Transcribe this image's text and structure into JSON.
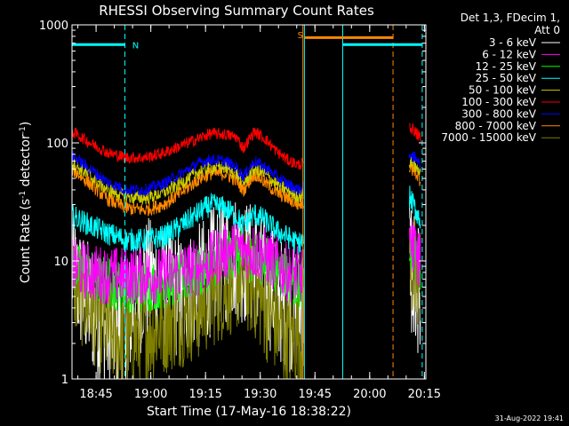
{
  "chart_data": {
    "type": "line",
    "title": "RHESSI Observing Summary Count Rates",
    "xlabel": "Start Time (17-May-16 18:38:22)",
    "ylabel_main": "Count Rate (s",
    "ylabel_sup1": "-1",
    "ylabel_mid": " detector",
    "ylabel_sup2": "-1",
    "ylabel_end": ")",
    "yscale": "log",
    "ylim": [
      1,
      1000
    ],
    "xlim_minutes": [
      0,
      97
    ],
    "x_ticks": [
      {
        "m": 6.6,
        "label": "18:45"
      },
      {
        "m": 21.6,
        "label": "19:00"
      },
      {
        "m": 36.6,
        "label": "19:15"
      },
      {
        "m": 51.6,
        "label": "19:30"
      },
      {
        "m": 66.6,
        "label": "19:45"
      },
      {
        "m": 81.6,
        "label": "20:00"
      },
      {
        "m": 96.6,
        "label": "20:15"
      }
    ],
    "y_ticks": [
      {
        "v": 1,
        "label": "1"
      },
      {
        "v": 10,
        "label": "10"
      },
      {
        "v": 100,
        "label": "100"
      },
      {
        "v": 1000,
        "label": "1000"
      }
    ],
    "legend_header": [
      "Det 1,3, FDecim 1,",
      "Att 0"
    ],
    "legend_position": "top-right-outside",
    "series": [
      {
        "name": "3 - 6 keV",
        "color": "#ffffff"
      },
      {
        "name": "6 - 12 keV",
        "color": "#ff00ff"
      },
      {
        "name": "12 - 25 keV",
        "color": "#00ff00"
      },
      {
        "name": "25 - 50 keV",
        "color": "#00ffff"
      },
      {
        "name": "50 - 100 keV",
        "color": "#cccc00"
      },
      {
        "name": "100 - 300 keV",
        "color": "#ff0000"
      },
      {
        "name": "300 - 800 keV",
        "color": "#0000ff"
      },
      {
        "name": "800 - 7000 keV",
        "color": "#ff8800"
      },
      {
        "name": "7000 - 15000 keV",
        "color": "#808000"
      }
    ],
    "profiles": [
      {
        "series": 5,
        "x": [
          0,
          5,
          10,
          15,
          20,
          25,
          30,
          35,
          38,
          42,
          45,
          47,
          50,
          53,
          56,
          59,
          62,
          63.5
        ],
        "y": [
          125,
          100,
          82,
          75,
          75,
          82,
          95,
          110,
          120,
          118,
          112,
          90,
          125,
          108,
          85,
          72,
          65,
          68
        ]
      },
      {
        "series": 6,
        "x": [
          0,
          5,
          10,
          15,
          20,
          25,
          30,
          35,
          38,
          42,
          45,
          47,
          50,
          53,
          56,
          59,
          62,
          63.5
        ],
        "y": [
          78,
          60,
          46,
          40,
          40,
          45,
          55,
          68,
          72,
          70,
          62,
          52,
          70,
          62,
          52,
          45,
          40,
          42
        ]
      },
      {
        "series": 4,
        "x": [
          0,
          5,
          10,
          15,
          20,
          25,
          30,
          35,
          38,
          42,
          45,
          47,
          50,
          53,
          56,
          59,
          62,
          63.5
        ],
        "y": [
          68,
          52,
          40,
          35,
          34,
          38,
          46,
          58,
          62,
          62,
          56,
          46,
          60,
          54,
          45,
          40,
          35,
          37
        ]
      },
      {
        "series": 7,
        "x": [
          0,
          5,
          10,
          15,
          20,
          25,
          30,
          35,
          38,
          42,
          45,
          47,
          50,
          53,
          56,
          59,
          62,
          63.5
        ],
        "y": [
          60,
          45,
          33,
          28,
          27,
          30,
          38,
          50,
          55,
          55,
          48,
          40,
          55,
          46,
          38,
          34,
          30,
          31
        ]
      },
      {
        "series": 3,
        "x": [
          0,
          5,
          10,
          15,
          20,
          25,
          30,
          35,
          38,
          42,
          45,
          47,
          50,
          53,
          56,
          59,
          62,
          63.5
        ],
        "y": [
          24,
          20,
          17,
          15,
          15,
          16,
          20,
          26,
          30,
          28,
          24,
          20,
          25,
          22,
          18,
          16,
          14,
          15
        ]
      },
      {
        "series": 1,
        "x": [
          0,
          5,
          10,
          15,
          20,
          25,
          30,
          35,
          38,
          42,
          45,
          47,
          50,
          53,
          56,
          59,
          62,
          63.5
        ],
        "y": [
          9,
          8,
          7.5,
          7.5,
          7.5,
          7.5,
          8,
          9,
          10,
          12,
          13,
          12.5,
          12,
          11,
          9.5,
          8,
          7.5,
          7.5
        ]
      },
      {
        "series": 2,
        "x": [
          0,
          5,
          10,
          15,
          20,
          25,
          30,
          35,
          38,
          42,
          45,
          47,
          50,
          53,
          56,
          59,
          62,
          63.5
        ],
        "y": [
          9,
          7.5,
          6.5,
          6,
          6,
          6.5,
          7,
          8,
          9.5,
          11,
          12,
          11.5,
          11,
          10,
          9,
          7.5,
          6.5,
          6.5
        ]
      },
      {
        "series": 0,
        "x": [
          0,
          5,
          10,
          15,
          20,
          25,
          30,
          35,
          38,
          42,
          45,
          47,
          50,
          53,
          56,
          59,
          62,
          63.5
        ],
        "y": [
          8,
          4,
          2.5,
          3,
          7,
          6,
          5,
          6,
          8,
          10,
          11,
          10,
          9,
          7,
          5,
          4,
          4,
          4
        ]
      },
      {
        "series": 8,
        "x": [
          0,
          5,
          10,
          15,
          20,
          25,
          30,
          35,
          38,
          42,
          45,
          47,
          50,
          53,
          56,
          59,
          62,
          63.5
        ],
        "y": [
          7,
          4,
          2.5,
          2,
          2.5,
          3,
          3.5,
          4,
          5,
          6,
          7,
          7,
          6,
          4,
          3,
          2,
          2.5,
          2
        ]
      }
    ],
    "profiles_right": [
      {
        "series": 5,
        "x": [
          92.5,
          94,
          95.5
        ],
        "y": [
          138,
          125,
          110
        ]
      },
      {
        "series": 6,
        "x": [
          92.5,
          94,
          95.5
        ],
        "y": [
          80,
          75,
          65
        ]
      },
      {
        "series": 4,
        "x": [
          92.5,
          94,
          95.5
        ],
        "y": [
          70,
          65,
          55
        ]
      },
      {
        "series": 7,
        "x": [
          92.5,
          94,
          95.5
        ],
        "y": [
          60,
          58,
          48
        ]
      },
      {
        "series": 3,
        "x": [
          92.5,
          94,
          95.5
        ],
        "y": [
          35,
          28,
          22
        ]
      },
      {
        "series": 1,
        "x": [
          92.5,
          94,
          95.5
        ],
        "y": [
          14,
          12,
          10
        ]
      },
      {
        "series": 2,
        "x": [
          92.5,
          94,
          95.5
        ],
        "y": [
          13,
          11,
          9
        ]
      },
      {
        "series": 0,
        "x": [
          92.5,
          94,
          95.5
        ],
        "y": [
          9,
          7,
          5
        ]
      },
      {
        "series": 8,
        "x": [
          92.5,
          94,
          95.5
        ],
        "y": [
          11,
          9,
          7
        ]
      }
    ],
    "vlines": [
      {
        "m": 14.5,
        "color": "#00ffff",
        "dash": true
      },
      {
        "m": 63.7,
        "color": "#00ffff",
        "dash": false
      },
      {
        "m": 63.3,
        "color": "#ff8800",
        "dash": false
      },
      {
        "m": 74.2,
        "color": "#00ffff",
        "dash": false
      },
      {
        "m": 88.0,
        "color": "#ff8800",
        "dash": true
      },
      {
        "m": 96.0,
        "color": "#00ffff",
        "dash": true
      }
    ],
    "bars": [
      {
        "from": 0,
        "to": 14.5,
        "color": "#00ffff",
        "y": 680
      },
      {
        "from": 63.8,
        "to": 88.0,
        "color": "#ff8800",
        "y": 780
      },
      {
        "from": 74.2,
        "to": 96.0,
        "color": "#00ffff",
        "y": 680
      }
    ],
    "annotations": [
      {
        "m": 16.5,
        "y": 680,
        "text": "N",
        "color": "#00ffff"
      },
      {
        "m": 61.8,
        "y": 830,
        "text": "S",
        "color": "#ff8800"
      }
    ],
    "footer_timestamp": "31-Aug-2022 19:41"
  }
}
